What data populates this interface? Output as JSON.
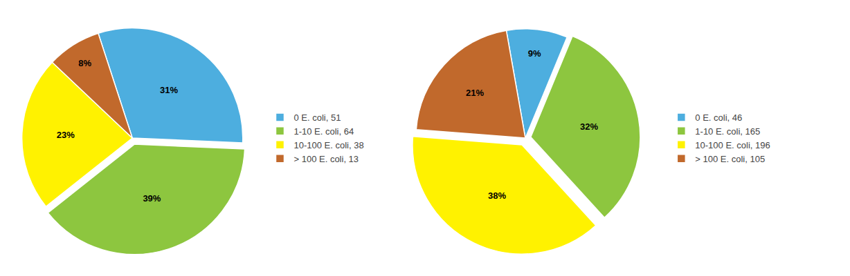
{
  "chart_data": [
    {
      "type": "pie",
      "categories": [
        "0 E. coli, 51",
        "1-10 E. coli, 64",
        "10-100 E. coli, 38",
        "> 100 E. coli, 13"
      ],
      "values": [
        31,
        39,
        23,
        8
      ],
      "value_labels": [
        "31%",
        "39%",
        "23%",
        "8%"
      ],
      "colors": [
        "#4DAEDF",
        "#8DC63F",
        "#FFF200",
        "#C1692C"
      ],
      "data_labels": true,
      "legend": "right"
    },
    {
      "type": "pie",
      "categories": [
        "0 E. coli, 46",
        "1-10 E. coli, 165",
        "10-100 E. coli, 196",
        "> 100 E. coli, 105"
      ],
      "values": [
        9,
        32,
        38,
        21
      ],
      "value_labels": [
        "9%",
        "32%",
        "38%",
        "21%"
      ],
      "colors": [
        "#4DAEDF",
        "#8DC63F",
        "#FFF200",
        "#C1692C"
      ],
      "data_labels": true,
      "legend": "right"
    }
  ]
}
